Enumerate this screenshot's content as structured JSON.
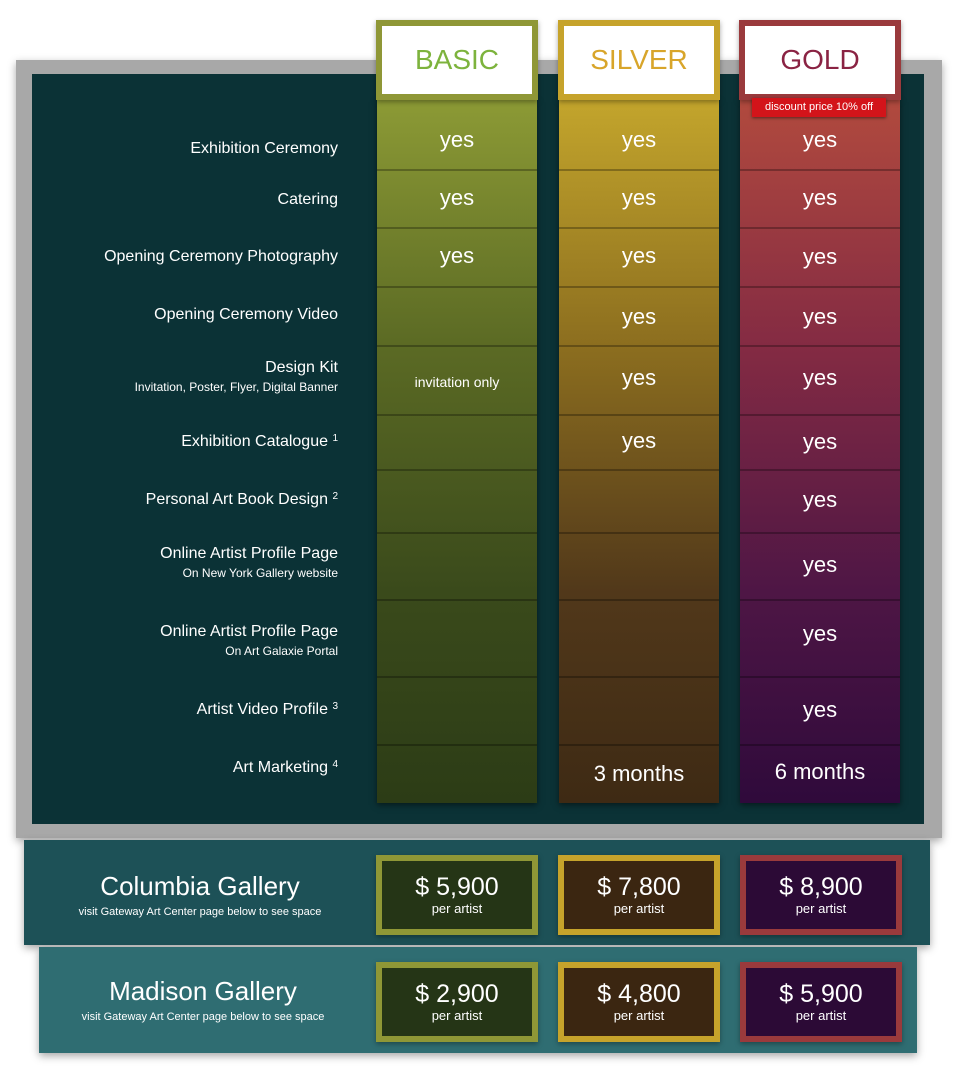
{
  "plans": {
    "basic": "BASIC",
    "silver": "SILVER",
    "gold": "GOLD",
    "gold_discount": "discount price 10% off"
  },
  "features": [
    {
      "label": "Exhibition Ceremony",
      "sub": "",
      "note": "",
      "basic": "yes",
      "silver": "yes",
      "gold": "yes"
    },
    {
      "label": "Catering",
      "sub": "",
      "note": "",
      "basic": "yes",
      "silver": "yes",
      "gold": "yes"
    },
    {
      "label": "Opening Ceremony Photography",
      "sub": "",
      "note": "",
      "basic": "yes",
      "silver": "yes",
      "gold": "yes"
    },
    {
      "label": "Opening Ceremony Video",
      "sub": "",
      "note": "",
      "basic": "",
      "silver": "yes",
      "gold": "yes"
    },
    {
      "label": "Design Kit",
      "sub": "Invitation, Poster, Flyer, Digital Banner",
      "note": "",
      "basic": "invitation only",
      "silver": "yes",
      "gold": "yes"
    },
    {
      "label": "Exhibition Catalogue",
      "sub": "",
      "note": "1",
      "basic": "",
      "silver": "yes",
      "gold": "yes"
    },
    {
      "label": "Personal Art Book Design",
      "sub": "",
      "note": "2",
      "basic": "",
      "silver": "",
      "gold": "yes"
    },
    {
      "label": "Online Artist Profile Page",
      "sub": "On New York Gallery website",
      "note": "",
      "basic": "",
      "silver": "",
      "gold": "yes"
    },
    {
      "label": "Online Artist Profile Page",
      "sub": "On Art Galaxie Portal",
      "note": "",
      "basic": "",
      "silver": "",
      "gold": "yes"
    },
    {
      "label": "Artist Video Profile",
      "sub": "",
      "note": "3",
      "basic": "",
      "silver": "",
      "gold": "yes"
    },
    {
      "label": "Art Marketing",
      "sub": "",
      "note": "4",
      "basic": "",
      "silver": "3 months",
      "gold": "6 months"
    }
  ],
  "galleries": {
    "columbia": {
      "name": "Columbia Gallery",
      "sub": "visit Gateway Art Center page below to see space",
      "basic": "$ 5,900",
      "silver": "$ 7,800",
      "gold": "$ 8,900",
      "per": "per artist"
    },
    "madison": {
      "name": "Madison Gallery",
      "sub": "visit Gateway Art Center page below to see space",
      "basic": "$ 2,900",
      "silver": "$ 4,800",
      "gold": "$ 5,900",
      "per": "per artist"
    }
  }
}
